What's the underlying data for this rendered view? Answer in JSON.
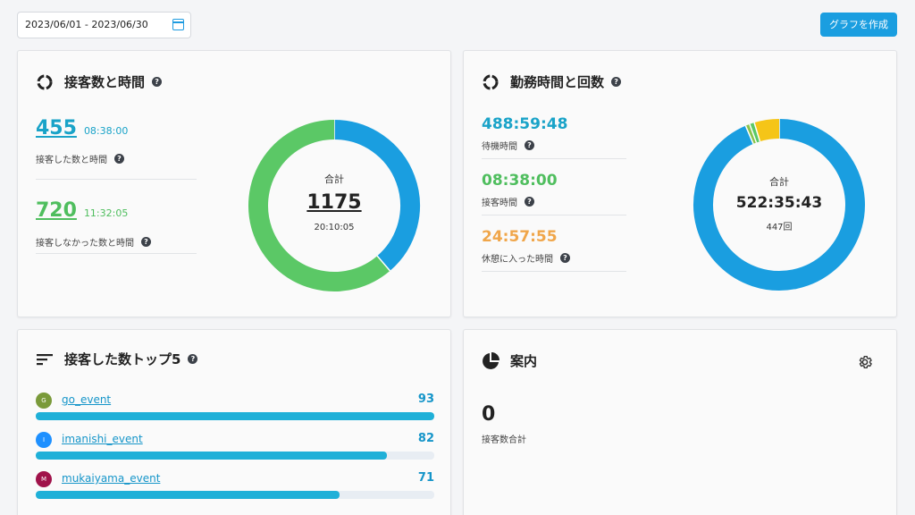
{
  "toolbar": {
    "date_range": "2023/06/01 - 2023/06/30",
    "create_button": "グラフを作成"
  },
  "colors": {
    "blue": "#1a9ee0",
    "green": "#5bc866",
    "teal": "#1aa3c8",
    "orange": "#f0a64a",
    "yellow": "#f5c518",
    "light_green": "#8bc34a"
  },
  "card_service": {
    "title": "接客数と時間",
    "help": "?",
    "served": {
      "count": "455",
      "time": "08:38:00",
      "label": "接客した数と時間"
    },
    "not_served": {
      "count": "720",
      "time": "11:32:05",
      "label": "接客しなかった数と時間"
    },
    "total_label": "合計",
    "total_count": "1175",
    "total_time": "20:10:05",
    "donut": [
      {
        "name": "served",
        "value": 455,
        "color": "#1a9ee0"
      },
      {
        "name": "not_served",
        "value": 720,
        "color": "#5bc866"
      }
    ]
  },
  "card_work": {
    "title": "勤務時間と回数",
    "help": "?",
    "items": [
      {
        "value": "488:59:48",
        "label": "待機時間",
        "color": "#1aa3c8"
      },
      {
        "value": "08:38:00",
        "label": "接客時間",
        "color": "#5bc866"
      },
      {
        "value": "24:57:55",
        "label": "休憩に入った時間",
        "color": "#f0a64a"
      }
    ],
    "total_label": "合計",
    "total_time": "522:35:43",
    "total_count": "447回",
    "donut": [
      {
        "name": "standby",
        "value": 0.936,
        "color": "#1a9ee0"
      },
      {
        "name": "light",
        "value": 0.008,
        "color": "#8bc34a"
      },
      {
        "name": "serving",
        "value": 0.009,
        "color": "#5bc866"
      },
      {
        "name": "break",
        "value": 0.047,
        "color": "#f5c518"
      }
    ]
  },
  "card_top": {
    "title": "接客した数トップ5",
    "help": "?",
    "max": 93,
    "rows": [
      {
        "initial": "G",
        "name": "go_event",
        "value": 93,
        "avatar_color": "#7a9a3a"
      },
      {
        "initial": "I",
        "name": "imanishi_event",
        "value": 82,
        "avatar_color": "#1e90ff"
      },
      {
        "initial": "M",
        "name": "mukaiyama_event",
        "value": 71,
        "avatar_color": "#a0124a"
      }
    ]
  },
  "card_guide": {
    "title": "案内",
    "count": "0",
    "label": "接客数合計"
  }
}
